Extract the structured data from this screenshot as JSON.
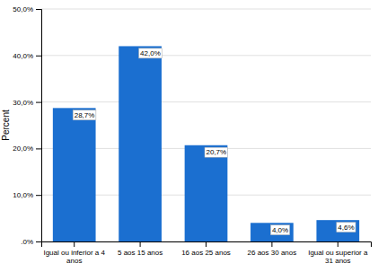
{
  "chart_data": {
    "type": "bar",
    "categories": [
      "Igual ou inferior a 4\nanos",
      "5 aos 15 anos",
      "16 aos 25 anos",
      "26 aos 30 anos",
      "Igual ou superior a\n31 anos"
    ],
    "values": [
      28.7,
      42.0,
      20.7,
      4.0,
      4.6
    ],
    "value_labels": [
      "28,7%",
      "42,0%",
      "20,7%",
      "4,0%",
      "4,6%"
    ],
    "data_labels": true,
    "color": "#1B6FD0",
    "ylabel": "Percent",
    "ylim": [
      0,
      50
    ],
    "yticks": [
      {
        "value": 0,
        "label": ".0%"
      },
      {
        "value": 10,
        "label": "10,0%"
      },
      {
        "value": 20,
        "label": "20,0%"
      },
      {
        "value": 30,
        "label": "30,0%"
      },
      {
        "value": 40,
        "label": "40,0%"
      },
      {
        "value": 50,
        "label": "50,0%"
      }
    ],
    "grid": true
  }
}
